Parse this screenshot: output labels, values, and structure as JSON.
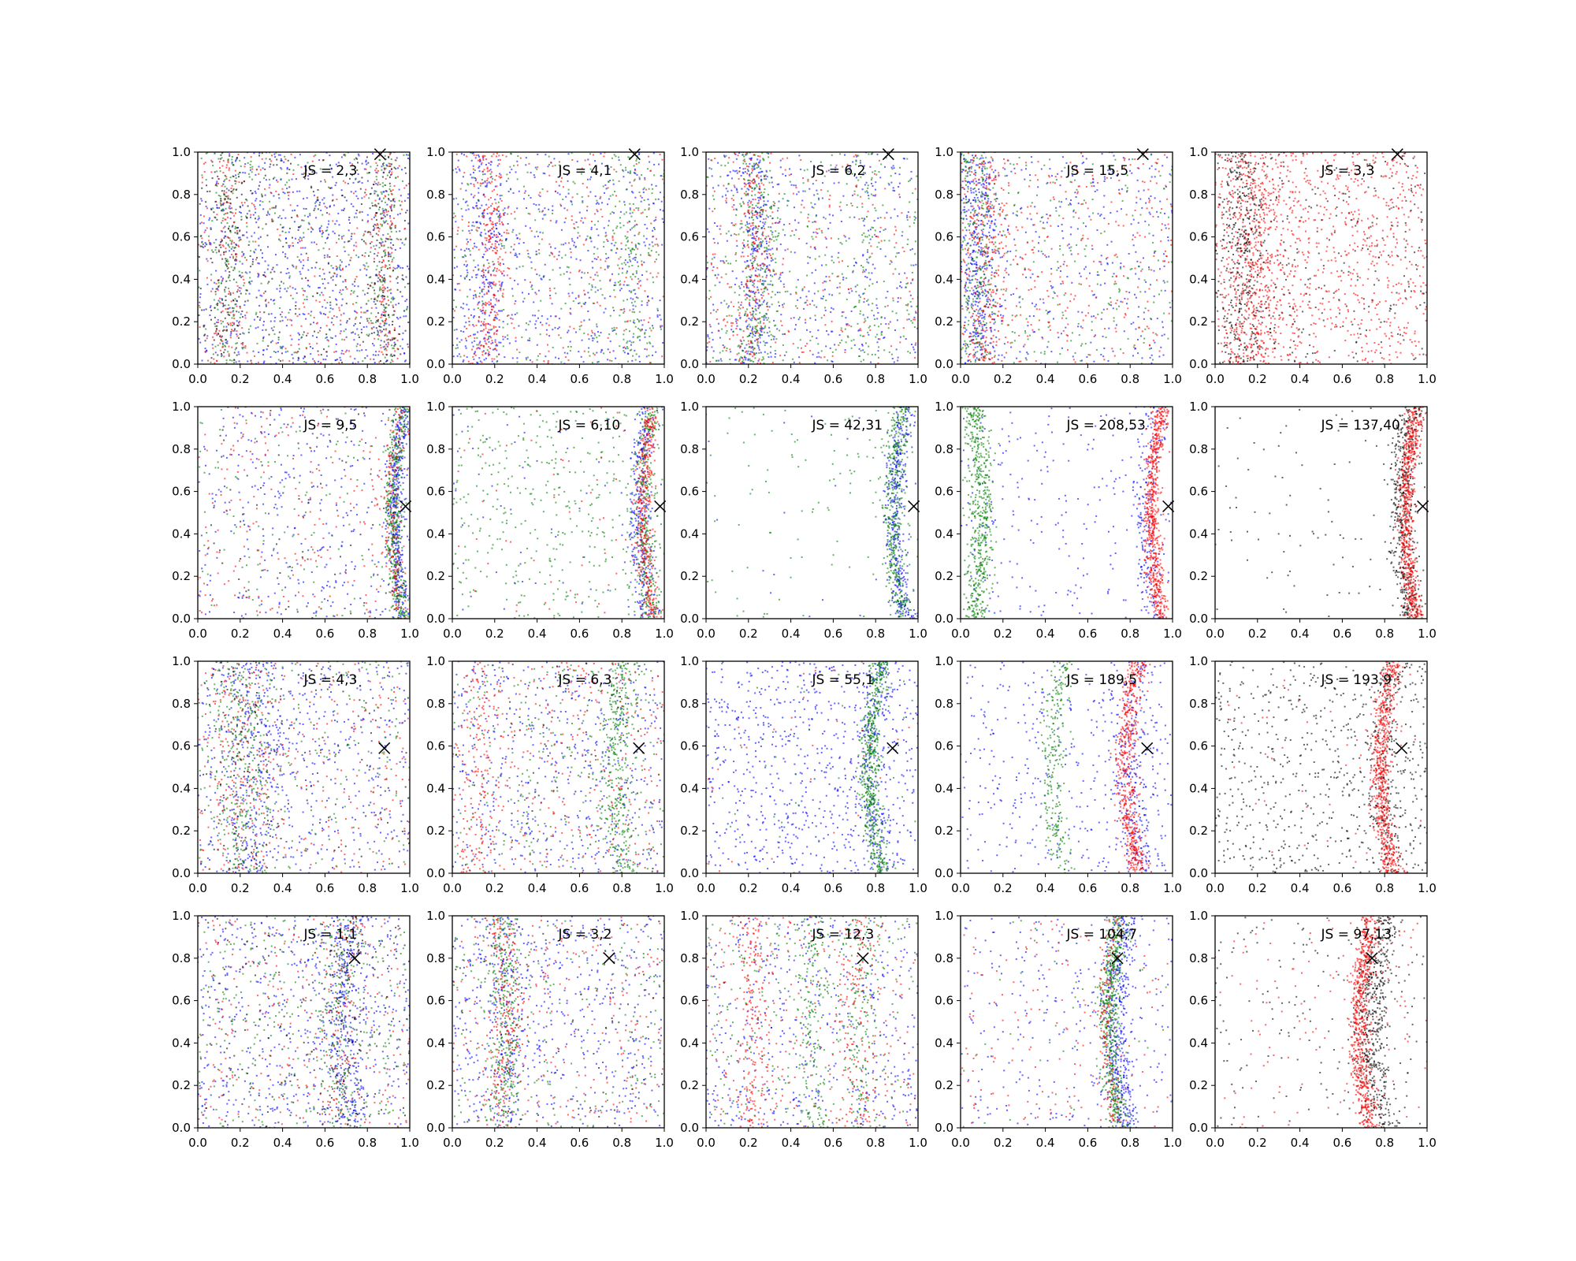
{
  "chart_data": {
    "type": "scatter",
    "layout": {
      "rows": 4,
      "cols": 5
    },
    "xlim": [
      0,
      1
    ],
    "ylim": [
      0,
      1
    ],
    "xticks": [
      "0.0",
      "0.2",
      "0.4",
      "0.6",
      "0.8",
      "1.0"
    ],
    "yticks": [
      "0.0",
      "0.2",
      "0.4",
      "0.6",
      "0.8",
      "1.0"
    ],
    "grid": false,
    "colors": {
      "blue": "#0000ff",
      "green": "#008000",
      "red": "#ff0000",
      "black": "#000000"
    },
    "marker_x": "×",
    "panels": [
      {
        "label": "JS = 2,3",
        "marker": [
          0.86,
          0.99
        ],
        "series": [
          {
            "color": "blue",
            "count": 700,
            "dist": "u"
          },
          {
            "color": "green",
            "count": 260,
            "dist": "u"
          },
          {
            "color": "green",
            "count": 110,
            "dist": "b",
            "cx": 0.13,
            "w": 0.04,
            "curv": 0.02
          },
          {
            "color": "green",
            "count": 110,
            "dist": "b",
            "cx": 0.9,
            "w": 0.035,
            "curv": -0.03
          },
          {
            "color": "red",
            "count": 300,
            "dist": "u"
          },
          {
            "color": "red",
            "count": 100,
            "dist": "b",
            "cx": 0.13,
            "w": 0.04,
            "curv": 0.02
          },
          {
            "color": "red",
            "count": 100,
            "dist": "b",
            "cx": 0.9,
            "w": 0.035,
            "curv": -0.03
          },
          {
            "color": "black",
            "count": 300,
            "dist": "u"
          },
          {
            "color": "black",
            "count": 120,
            "dist": "b",
            "cx": 0.13,
            "w": 0.04,
            "curv": 0.02
          },
          {
            "color": "black",
            "count": 120,
            "dist": "b",
            "cx": 0.9,
            "w": 0.035,
            "curv": -0.03
          }
        ]
      },
      {
        "label": "JS = 4,1",
        "marker": [
          0.86,
          0.99
        ],
        "series": [
          {
            "color": "blue",
            "count": 550,
            "dist": "u"
          },
          {
            "color": "blue",
            "count": 200,
            "dist": "b",
            "cx": 0.12,
            "w": 0.05,
            "curv": 0.04
          },
          {
            "color": "green",
            "count": 320,
            "dist": "u"
          },
          {
            "color": "green",
            "count": 120,
            "dist": "b",
            "cx": 0.85,
            "w": 0.05,
            "curv": -0.02
          },
          {
            "color": "red",
            "count": 280,
            "dist": "u"
          },
          {
            "color": "red",
            "count": 250,
            "dist": "b",
            "cx": 0.15,
            "w": 0.04,
            "curv": 0.04
          }
        ]
      },
      {
        "label": "JS = 6,2",
        "marker": [
          0.86,
          0.99
        ],
        "series": [
          {
            "color": "blue",
            "count": 450,
            "dist": "u"
          },
          {
            "color": "blue",
            "count": 250,
            "dist": "b",
            "cx": 0.22,
            "w": 0.05,
            "curv": 0.03
          },
          {
            "color": "green",
            "count": 300,
            "dist": "u"
          },
          {
            "color": "green",
            "count": 280,
            "dist": "b",
            "cx": 0.22,
            "w": 0.05,
            "curv": 0.03
          },
          {
            "color": "green",
            "count": 80,
            "dist": "b",
            "cx": 0.78,
            "w": 0.05,
            "curv": -0.02
          },
          {
            "color": "red",
            "count": 250,
            "dist": "u"
          },
          {
            "color": "red",
            "count": 200,
            "dist": "b",
            "cx": 0.2,
            "w": 0.04,
            "curv": 0.03
          }
        ]
      },
      {
        "label": "JS = 15,5",
        "marker": [
          0.86,
          0.99
        ],
        "series": [
          {
            "color": "blue",
            "count": 400,
            "dist": "u"
          },
          {
            "color": "blue",
            "count": 400,
            "dist": "b",
            "cx": 0.05,
            "w": 0.05,
            "curv": 0.03
          },
          {
            "color": "green",
            "count": 250,
            "dist": "u"
          },
          {
            "color": "green",
            "count": 250,
            "dist": "b",
            "cx": 0.06,
            "w": 0.05,
            "curv": 0.03
          },
          {
            "color": "red",
            "count": 350,
            "dist": "u"
          },
          {
            "color": "red",
            "count": 250,
            "dist": "b",
            "cx": 0.1,
            "w": 0.05,
            "curv": 0.03
          }
        ]
      },
      {
        "label": "JS = 3,3",
        "marker": [
          0.86,
          0.99
        ],
        "series": [
          {
            "color": "red",
            "count": 900,
            "dist": "u"
          },
          {
            "color": "red",
            "count": 450,
            "dist": "b",
            "cx": 0.16,
            "w": 0.07,
            "curv": 0.03
          },
          {
            "color": "black",
            "count": 300,
            "dist": "u"
          },
          {
            "color": "black",
            "count": 350,
            "dist": "b",
            "cx": 0.1,
            "w": 0.06,
            "curv": 0.03
          }
        ]
      },
      {
        "label": "JS = 9,5",
        "marker": [
          0.98,
          0.53
        ],
        "series": [
          {
            "color": "blue",
            "count": 350,
            "dist": "u"
          },
          {
            "color": "blue",
            "count": 380,
            "dist": "b",
            "cx": 0.98,
            "w": 0.02,
            "curv": -0.05
          },
          {
            "color": "green",
            "count": 120,
            "dist": "u"
          },
          {
            "color": "green",
            "count": 420,
            "dist": "b",
            "cx": 0.97,
            "w": 0.02,
            "curv": -0.05
          },
          {
            "color": "red",
            "count": 220,
            "dist": "u"
          },
          {
            "color": "red",
            "count": 160,
            "dist": "b",
            "cx": 0.96,
            "w": 0.02,
            "curv": -0.05
          },
          {
            "color": "black",
            "count": 80,
            "dist": "u"
          }
        ]
      },
      {
        "label": "JS = 6,10",
        "marker": [
          0.98,
          0.53
        ],
        "series": [
          {
            "color": "blue",
            "count": 60,
            "dist": "u"
          },
          {
            "color": "blue",
            "count": 320,
            "dist": "b",
            "cx": 0.93,
            "w": 0.025,
            "curv": -0.05
          },
          {
            "color": "green",
            "count": 420,
            "dist": "u"
          },
          {
            "color": "green",
            "count": 280,
            "dist": "b",
            "cx": 0.95,
            "w": 0.025,
            "curv": -0.05
          },
          {
            "color": "red",
            "count": 60,
            "dist": "u"
          },
          {
            "color": "red",
            "count": 380,
            "dist": "b",
            "cx": 0.95,
            "w": 0.02,
            "curv": -0.05
          }
        ]
      },
      {
        "label": "JS = 42,31",
        "marker": [
          0.98,
          0.53
        ],
        "series": [
          {
            "color": "blue",
            "count": 20,
            "dist": "u"
          },
          {
            "color": "blue",
            "count": 380,
            "dist": "b",
            "cx": 0.94,
            "w": 0.025,
            "curv": -0.05
          },
          {
            "color": "green",
            "count": 110,
            "dist": "u"
          },
          {
            "color": "green",
            "count": 420,
            "dist": "b",
            "cx": 0.93,
            "w": 0.025,
            "curv": -0.05
          }
        ]
      },
      {
        "label": "JS = 208,53",
        "marker": [
          0.98,
          0.53
        ],
        "series": [
          {
            "color": "blue",
            "count": 240,
            "dist": "u"
          },
          {
            "color": "blue",
            "count": 180,
            "dist": "b",
            "cx": 0.92,
            "w": 0.03,
            "curv": -0.05
          },
          {
            "color": "green",
            "count": 550,
            "dist": "b",
            "cx": 0.06,
            "w": 0.03,
            "curv": 0.04
          },
          {
            "color": "red",
            "count": 650,
            "dist": "b",
            "cx": 0.95,
            "w": 0.02,
            "curv": -0.05
          }
        ]
      },
      {
        "label": "JS = 137,40",
        "marker": [
          0.98,
          0.53
        ],
        "series": [
          {
            "color": "black",
            "count": 110,
            "dist": "u"
          },
          {
            "color": "black",
            "count": 500,
            "dist": "b",
            "cx": 0.93,
            "w": 0.03,
            "curv": -0.05
          },
          {
            "color": "red",
            "count": 650,
            "dist": "b",
            "cx": 0.95,
            "w": 0.02,
            "curv": -0.05
          }
        ]
      },
      {
        "label": "JS = 4,3",
        "marker": [
          0.88,
          0.59
        ],
        "series": [
          {
            "color": "blue",
            "count": 500,
            "dist": "u"
          },
          {
            "color": "blue",
            "count": 250,
            "dist": "b",
            "cx": 0.25,
            "w": 0.08,
            "curv": 0.04
          },
          {
            "color": "green",
            "count": 180,
            "dist": "u"
          },
          {
            "color": "green",
            "count": 300,
            "dist": "b",
            "cx": 0.18,
            "w": 0.08,
            "curv": 0.04
          },
          {
            "color": "red",
            "count": 250,
            "dist": "u"
          },
          {
            "color": "red",
            "count": 150,
            "dist": "b",
            "cx": 0.18,
            "w": 0.08,
            "curv": 0.04
          },
          {
            "color": "black",
            "count": 100,
            "dist": "u"
          },
          {
            "color": "black",
            "count": 100,
            "dist": "b",
            "cx": 0.2,
            "w": 0.08,
            "curv": 0.04
          }
        ]
      },
      {
        "label": "JS = 6,3",
        "marker": [
          0.88,
          0.59
        ],
        "series": [
          {
            "color": "blue",
            "count": 550,
            "dist": "u"
          },
          {
            "color": "green",
            "count": 250,
            "dist": "u"
          },
          {
            "color": "green",
            "count": 350,
            "dist": "b",
            "cx": 0.82,
            "w": 0.04,
            "curv": -0.06
          },
          {
            "color": "red",
            "count": 320,
            "dist": "u"
          },
          {
            "color": "red",
            "count": 150,
            "dist": "b",
            "cx": 0.1,
            "w": 0.05,
            "curv": 0.04
          },
          {
            "color": "black",
            "count": 80,
            "dist": "u"
          }
        ]
      },
      {
        "label": "JS = 55,1",
        "marker": [
          0.88,
          0.59
        ],
        "series": [
          {
            "color": "blue",
            "count": 750,
            "dist": "u"
          },
          {
            "color": "blue",
            "count": 220,
            "dist": "b",
            "cx": 0.84,
            "w": 0.035,
            "curv": -0.06
          },
          {
            "color": "green",
            "count": 40,
            "dist": "u"
          },
          {
            "color": "green",
            "count": 550,
            "dist": "b",
            "cx": 0.83,
            "w": 0.025,
            "curv": -0.06
          },
          {
            "color": "red",
            "count": 30,
            "dist": "u"
          }
        ]
      },
      {
        "label": "JS = 189,5",
        "marker": [
          0.88,
          0.59
        ],
        "series": [
          {
            "color": "blue",
            "count": 380,
            "dist": "u"
          },
          {
            "color": "blue",
            "count": 250,
            "dist": "b",
            "cx": 0.86,
            "w": 0.04,
            "curv": -0.06
          },
          {
            "color": "green",
            "count": 260,
            "dist": "b",
            "cx": 0.48,
            "w": 0.03,
            "curv": -0.05
          },
          {
            "color": "red",
            "count": 550,
            "dist": "b",
            "cx": 0.84,
            "w": 0.025,
            "curv": -0.06
          }
        ]
      },
      {
        "label": "JS = 193,9",
        "marker": [
          0.88,
          0.59
        ],
        "series": [
          {
            "color": "black",
            "count": 650,
            "dist": "u"
          },
          {
            "color": "black",
            "count": 200,
            "dist": "b",
            "cx": 0.86,
            "w": 0.04,
            "curv": -0.06
          },
          {
            "color": "red",
            "count": 40,
            "dist": "u"
          },
          {
            "color": "red",
            "count": 650,
            "dist": "b",
            "cx": 0.84,
            "w": 0.025,
            "curv": -0.06
          }
        ]
      },
      {
        "label": "JS = 1,1",
        "marker": [
          0.74,
          0.8
        ],
        "series": [
          {
            "color": "blue",
            "count": 550,
            "dist": "u"
          },
          {
            "color": "blue",
            "count": 280,
            "dist": "b",
            "cx": 0.73,
            "w": 0.05,
            "curv": -0.04
          },
          {
            "color": "green",
            "count": 280,
            "dist": "u"
          },
          {
            "color": "green",
            "count": 150,
            "dist": "b",
            "cx": 0.7,
            "w": 0.05,
            "curv": -0.04
          },
          {
            "color": "red",
            "count": 250,
            "dist": "u"
          },
          {
            "color": "red",
            "count": 80,
            "dist": "b",
            "cx": 0.7,
            "w": 0.05,
            "curv": -0.04
          },
          {
            "color": "black",
            "count": 180,
            "dist": "u"
          },
          {
            "color": "black",
            "count": 120,
            "dist": "b",
            "cx": 0.72,
            "w": 0.05,
            "curv": -0.04
          }
        ]
      },
      {
        "label": "JS = 3,2",
        "marker": [
          0.74,
          0.8
        ],
        "series": [
          {
            "color": "blue",
            "count": 550,
            "dist": "u"
          },
          {
            "color": "blue",
            "count": 150,
            "dist": "b",
            "cx": 0.22,
            "w": 0.04,
            "curv": 0.04
          },
          {
            "color": "green",
            "count": 200,
            "dist": "u"
          },
          {
            "color": "green",
            "count": 300,
            "dist": "b",
            "cx": 0.22,
            "w": 0.04,
            "curv": 0.04
          },
          {
            "color": "red",
            "count": 250,
            "dist": "u"
          },
          {
            "color": "red",
            "count": 200,
            "dist": "b",
            "cx": 0.22,
            "w": 0.04,
            "curv": 0.04
          },
          {
            "color": "black",
            "count": 80,
            "dist": "u"
          }
        ]
      },
      {
        "label": "JS = 12,3",
        "marker": [
          0.74,
          0.8
        ],
        "series": [
          {
            "color": "blue",
            "count": 500,
            "dist": "u"
          },
          {
            "color": "green",
            "count": 250,
            "dist": "u"
          },
          {
            "color": "green",
            "count": 180,
            "dist": "b",
            "cx": 0.52,
            "w": 0.04,
            "curv": -0.03
          },
          {
            "color": "green",
            "count": 150,
            "dist": "b",
            "cx": 0.74,
            "w": 0.04,
            "curv": -0.03
          },
          {
            "color": "red",
            "count": 250,
            "dist": "u"
          },
          {
            "color": "red",
            "count": 200,
            "dist": "b",
            "cx": 0.2,
            "w": 0.04,
            "curv": 0.03
          },
          {
            "color": "red",
            "count": 120,
            "dist": "b",
            "cx": 0.72,
            "w": 0.04,
            "curv": -0.03
          }
        ]
      },
      {
        "label": "JS = 104,7",
        "marker": [
          0.74,
          0.8
        ],
        "series": [
          {
            "color": "blue",
            "count": 280,
            "dist": "u"
          },
          {
            "color": "blue",
            "count": 420,
            "dist": "b",
            "cx": 0.79,
            "w": 0.035,
            "curv": -0.06
          },
          {
            "color": "green",
            "count": 40,
            "dist": "u"
          },
          {
            "color": "green",
            "count": 550,
            "dist": "b",
            "cx": 0.76,
            "w": 0.025,
            "curv": -0.06
          },
          {
            "color": "red",
            "count": 150,
            "dist": "u"
          },
          {
            "color": "red",
            "count": 150,
            "dist": "b",
            "cx": 0.74,
            "w": 0.02,
            "curv": -0.06
          }
        ]
      },
      {
        "label": "JS = 97,13",
        "marker": [
          0.74,
          0.8
        ],
        "series": [
          {
            "color": "black",
            "count": 180,
            "dist": "u"
          },
          {
            "color": "black",
            "count": 500,
            "dist": "b",
            "cx": 0.8,
            "w": 0.04,
            "curv": -0.06
          },
          {
            "color": "red",
            "count": 120,
            "dist": "u"
          },
          {
            "color": "red",
            "count": 650,
            "dist": "b",
            "cx": 0.74,
            "w": 0.025,
            "curv": -0.06
          }
        ]
      }
    ]
  }
}
